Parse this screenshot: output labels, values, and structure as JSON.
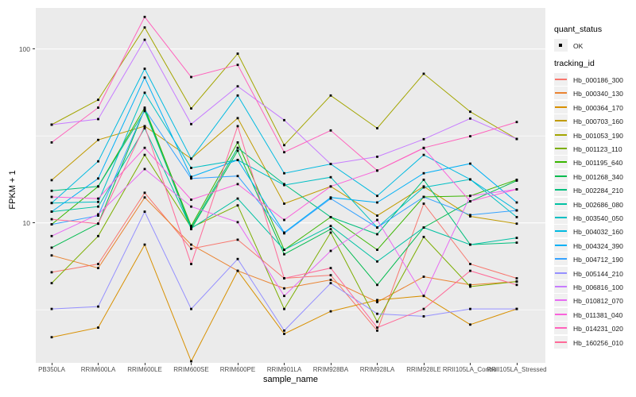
{
  "chart_data": {
    "type": "line",
    "title": "",
    "xlabel": "sample_name",
    "ylabel": "FPKM + 1",
    "y_scale": "log10",
    "y_ticks": [
      100,
      10
    ],
    "y_minor_ticks": [
      31.62,
      3.162
    ],
    "ylim": [
      1.55,
      175
    ],
    "grid": true,
    "legend_position": "right",
    "marker": "small-black-square",
    "categories": [
      "PB350LA",
      "RRIM600LA",
      "RRIM600LE",
      "RRIM600SE",
      "RRIM600PE",
      "RRIM901LA",
      "RRIM928BA",
      "RRIM928LA",
      "RRIM928LE",
      "RRII105LA_Control",
      "RRII105LA_Stressed"
    ],
    "series": [
      {
        "name": "Hb_000186_300",
        "color": "#F8766D",
        "values": [
          5.2,
          5.8,
          14.9,
          7.1,
          8.0,
          4.8,
          5.0,
          2.4,
          12.9,
          5.8,
          4.8
        ]
      },
      {
        "name": "Hb_000340_130",
        "color": "#EA8331",
        "values": [
          6.5,
          5.5,
          14.0,
          7.5,
          5.3,
          4.2,
          4.7,
          3.5,
          4.9,
          4.4,
          4.6
        ]
      },
      {
        "name": "Hb_000364_170",
        "color": "#D89000",
        "values": [
          2.2,
          2.5,
          7.5,
          1.6,
          5.3,
          2.3,
          3.1,
          3.6,
          3.8,
          2.6,
          3.2
        ]
      },
      {
        "name": "Hb_000703_160",
        "color": "#C09B00",
        "values": [
          17.6,
          30.0,
          36.0,
          23.4,
          40.0,
          12.9,
          16.2,
          11.0,
          16.2,
          10.9,
          9.9
        ]
      },
      {
        "name": "Hb_001053_190",
        "color": "#A3A500",
        "values": [
          36.7,
          51.0,
          133.0,
          45.5,
          94.0,
          28.0,
          54.0,
          35.0,
          72.0,
          43.6,
          30.4
        ]
      },
      {
        "name": "Hb_001123_110",
        "color": "#7CAE00",
        "values": [
          4.5,
          8.4,
          24.6,
          9.4,
          12.6,
          3.2,
          8.8,
          2.7,
          8.3,
          4.3,
          4.6
        ]
      },
      {
        "name": "Hb_001195_640",
        "color": "#39B600",
        "values": [
          9.8,
          16.2,
          46.0,
          9.6,
          29.0,
          7.0,
          10.8,
          7.0,
          14.1,
          14.3,
          17.7
        ]
      },
      {
        "name": "Hb_001268_340",
        "color": "#00BB4E",
        "values": [
          7.2,
          9.9,
          45.0,
          9.2,
          26.0,
          6.6,
          9.2,
          4.4,
          9.4,
          13.3,
          17.5
        ]
      },
      {
        "name": "Hb_002284_210",
        "color": "#00BF7D",
        "values": [
          15.3,
          16.2,
          44.0,
          9.4,
          27.0,
          16.7,
          10.8,
          8.6,
          17.7,
          7.5,
          7.7
        ]
      },
      {
        "name": "Hb_002686_080",
        "color": "#00C1A3",
        "values": [
          11.6,
          12.4,
          35.0,
          9.3,
          13.8,
          7.0,
          9.6,
          6.0,
          9.4,
          7.5,
          8.2
        ]
      },
      {
        "name": "Hb_003540_050",
        "color": "#00BFC4",
        "values": [
          13.0,
          13.2,
          56.0,
          20.7,
          23.0,
          16.5,
          18.3,
          9.4,
          16.0,
          17.8,
          10.8
        ]
      },
      {
        "name": "Hb_004032_160",
        "color": "#00BAE0",
        "values": [
          13.0,
          22.6,
          77.0,
          23.4,
          54.0,
          19.3,
          21.8,
          14.3,
          24.6,
          17.8,
          11.8
        ]
      },
      {
        "name": "Hb_004324_390",
        "color": "#00B0F6",
        "values": [
          11.6,
          18.0,
          68.5,
          18.4,
          23.0,
          8.8,
          14.0,
          13.1,
          19.3,
          21.9,
          13.1
        ]
      },
      {
        "name": "Hb_004712_190",
        "color": "#35A2FF",
        "values": [
          9.8,
          11.0,
          45.0,
          18.0,
          18.6,
          8.7,
          13.8,
          9.4,
          14.1,
          11.1,
          11.8
        ]
      },
      {
        "name": "Hb_005144_210",
        "color": "#9590FF",
        "values": [
          3.2,
          3.3,
          11.6,
          3.2,
          6.2,
          2.4,
          4.5,
          3.0,
          2.9,
          3.2,
          3.2
        ]
      },
      {
        "name": "Hb_006816_100",
        "color": "#C77CFF",
        "values": [
          36.7,
          39.5,
          113.0,
          37.0,
          61.0,
          39.0,
          21.8,
          24.0,
          30.3,
          39.8,
          30.4
        ]
      },
      {
        "name": "Hb_010812_070",
        "color": "#E76BF3",
        "values": [
          8.4,
          11.2,
          20.4,
          12.4,
          10.1,
          3.8,
          6.9,
          10.4,
          3.8,
          14.3,
          15.6
        ]
      },
      {
        "name": "Hb_011381_040",
        "color": "#FA62DB",
        "values": [
          14.1,
          13.8,
          27.0,
          13.6,
          16.7,
          10.4,
          16.2,
          20.0,
          26.9,
          13.3,
          15.6
        ]
      },
      {
        "name": "Hb_014231_020",
        "color": "#FF62BC",
        "values": [
          29.0,
          46.0,
          153.0,
          69.0,
          81.0,
          25.5,
          34.0,
          20.0,
          27.0,
          31.5,
          38.0
        ]
      },
      {
        "name": "Hb_160256_010",
        "color": "#FF6A98",
        "values": [
          10.5,
          9.9,
          36.0,
          5.8,
          36.0,
          4.8,
          5.5,
          2.5,
          3.2,
          5.3,
          4.4
        ]
      }
    ]
  },
  "axes": {
    "x_title": "sample_name",
    "y_title": "FPKM + 1",
    "y_tick_labels": [
      "100",
      "10"
    ]
  },
  "legend": {
    "quant_status_title": "quant_status",
    "ok_label": "OK",
    "tracking_id_title": "tracking_id"
  },
  "style_colors": {
    "panel_background": "#EBEBEB",
    "gridline": "#FFFFFF",
    "tick_text": "#4D4D4D",
    "point": "#000000",
    "legend_key_background": "#F0F0F0"
  }
}
